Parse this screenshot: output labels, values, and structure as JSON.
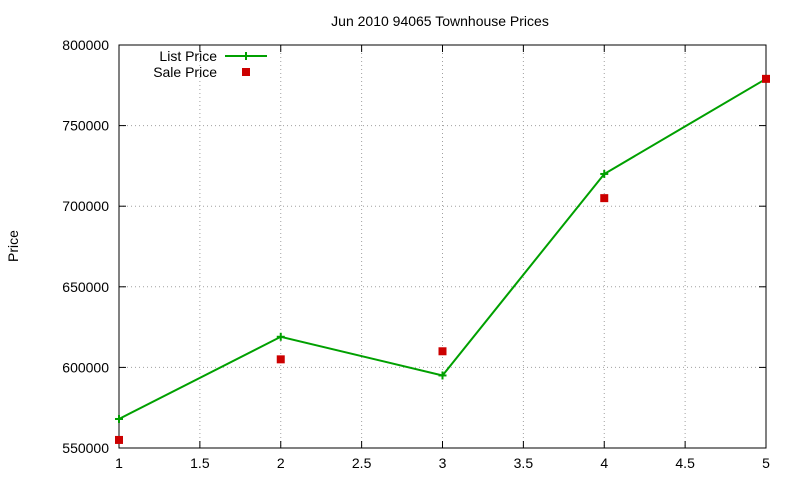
{
  "chart_data": {
    "type": "line",
    "title": "Jun 2010 94065 Townhouse Prices",
    "xlabel": "",
    "ylabel": "Price",
    "xlim": [
      1,
      5
    ],
    "ylim": [
      550000,
      800000
    ],
    "x_ticks": [
      1,
      1.5,
      2,
      2.5,
      3,
      3.5,
      4,
      4.5,
      5
    ],
    "x_tick_labels": [
      "1",
      "1.5",
      "2",
      "2.5",
      "3",
      "3.5",
      "4",
      "4.5",
      "5"
    ],
    "y_ticks": [
      550000,
      600000,
      650000,
      700000,
      750000,
      800000
    ],
    "y_tick_labels": [
      "550000",
      "600000",
      "650000",
      "700000",
      "750000",
      "800000"
    ],
    "grid": true,
    "legend_position": "top-left",
    "series": [
      {
        "name": "List Price",
        "style": "line-plus",
        "color": "#00a000",
        "x": [
          1,
          2,
          3,
          4,
          5
        ],
        "y": [
          568000,
          619000,
          595000,
          720000,
          779000
        ]
      },
      {
        "name": "Sale Price",
        "style": "square-points",
        "color": "#cc0000",
        "x": [
          1,
          2,
          3,
          4,
          5
        ],
        "y": [
          555000,
          605000,
          610000,
          705000,
          779000
        ]
      }
    ]
  }
}
